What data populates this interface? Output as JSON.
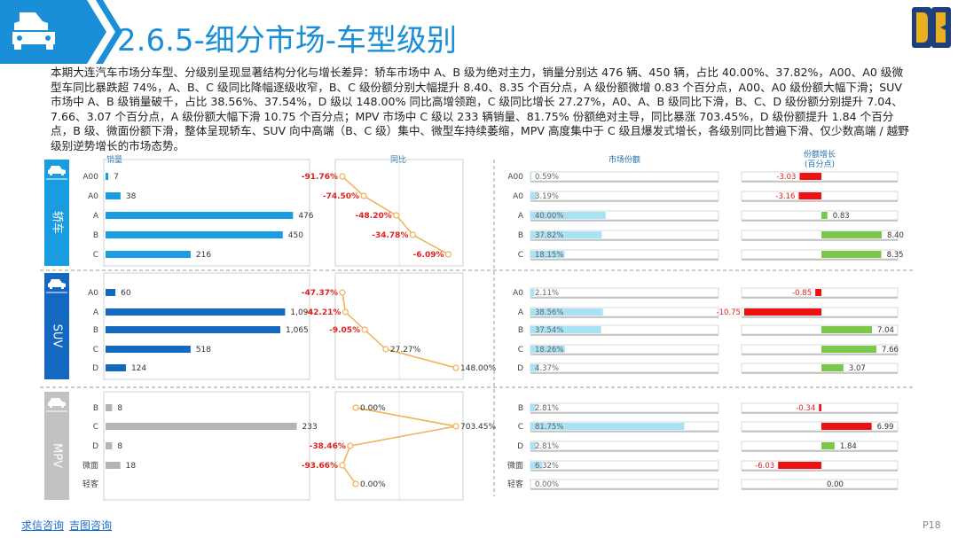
{
  "title": "2.6.5-细分市场-车型级别",
  "summary": "本期大连汽车市场分车型、分级别呈现显著结构分化与增长差异：轿车市场中 A、B 级为绝对主力，销量分别达 476 辆、450 辆，占比 40.00%、37.82%，A00、A0 级微型车同比暴跌超 74%，A、B、C 级同比降幅逐级收窄，B、C 级份额分别大幅提升 8.40、8.35 个百分点，A 级份额微增 0.83 个百分点，A00、A0 级份额大幅下滑；SUV 市场中 A、B 级销量破千，占比 38.56%、37.54%，D 级以 148.00% 同比高增领跑，C 级同比增长 27.27%，A0、A、B 级同比下滑，B、C、D 级份额分别提升 7.04、7.66、3.07 个百分点，A 级份额大幅下滑 10.75 个百分点；MPV 市场中 C 级以 233 辆销量、81.75% 份额绝对主导，同比暴涨 703.45%，D 级份额提升 1.84 个百分点，B 级、微面份额下滑，整体呈现轿车、SUV 向中高端（B、C 级）集中、微型车持续萎缩，MPV 高度集中于 C 级且爆发式增长，各级别同比普遍下滑、仅少数高端 / 越野级别逆势增长的市场态势。",
  "footer": {
    "link1": "求信咨询",
    "link2": "吉图咨询"
  },
  "page_number": "P18",
  "colors": {
    "accent": "#1a8fd8",
    "sedan_bar": "#1a9de0",
    "suv_bar": "#1468c0",
    "mpv_bar": "#b4b4b4",
    "yoy_line": "#f0b050",
    "yoy_label": "#e02020",
    "share_bar": "#a8e2f4",
    "gain": "#7cc84a",
    "loss": "#ee1111"
  },
  "chart_data": {
    "type": "bar",
    "column_headers": {
      "sales": "销量",
      "yoy": "同比",
      "share": "市场份额",
      "share_change": "份额增长",
      "share_change_unit": "(百分点)"
    },
    "panels": [
      {
        "name": "轿车",
        "icon": "sedan-icon",
        "categories": [
          "A00",
          "A0",
          "A",
          "B",
          "C"
        ],
        "sales": [
          7,
          38,
          476,
          450,
          216
        ],
        "sales_labels": [
          "7",
          "38",
          "476",
          "450",
          "216"
        ],
        "sales_max": 500,
        "yoy": [
          -91.76,
          -74.5,
          -48.2,
          -34.78,
          -6.09
        ],
        "yoy_labels": [
          "-91.76%",
          "-74.50%",
          "-48.20%",
          "-34.78%",
          "-6.09%"
        ],
        "share": [
          0.59,
          3.19,
          40.0,
          37.82,
          18.15
        ],
        "share_labels": [
          "0.59%",
          "3.19%",
          "40.00%",
          "37.82%",
          "18.15%"
        ],
        "share_change": [
          -3.03,
          -3.16,
          0.83,
          8.4,
          8.35
        ],
        "share_change_labels": [
          "-3.03",
          "-3.16",
          "0.83",
          "8.40",
          "8.35"
        ]
      },
      {
        "name": "SUV",
        "icon": "suv-icon",
        "categories": [
          "A0",
          "A",
          "B",
          "C",
          "D"
        ],
        "sales": [
          60,
          1094,
          1065,
          518,
          124
        ],
        "sales_labels": [
          "60",
          "1,094",
          "1,065",
          "518",
          "124"
        ],
        "sales_max": 1200,
        "yoy": [
          -47.37,
          -42.21,
          -9.05,
          27.27,
          148.0
        ],
        "yoy_labels": [
          "-47.37%",
          "-42.21%",
          "-9.05%",
          "27.27%",
          "148.00%"
        ],
        "share": [
          2.11,
          38.56,
          37.54,
          18.26,
          4.37
        ],
        "share_labels": [
          "2.11%",
          "38.56%",
          "37.54%",
          "18.26%",
          "4.37%"
        ],
        "share_change": [
          -0.85,
          -10.75,
          7.04,
          7.66,
          3.07
        ],
        "share_change_labels": [
          "-0.85",
          "-10.75",
          "7.04",
          "7.66",
          "3.07"
        ]
      },
      {
        "name": "MPV",
        "icon": "mpv-icon",
        "categories": [
          "B",
          "C",
          "D",
          "微面",
          "轻客"
        ],
        "sales": [
          8,
          233,
          8,
          18,
          0
        ],
        "sales_labels": [
          "8",
          "233",
          "8",
          "18",
          ""
        ],
        "sales_max": 240,
        "yoy": [
          0.0,
          703.45,
          -38.46,
          -93.66,
          0.0
        ],
        "yoy_labels": [
          "0.00%",
          "703.45%",
          "-38.46%",
          "-93.66%",
          "0.00%"
        ],
        "share": [
          2.81,
          81.75,
          2.81,
          6.32,
          0.0
        ],
        "share_labels": [
          "2.81%",
          "81.75%",
          "2.81%",
          "6.32%",
          "0.00%"
        ],
        "share_change": [
          -0.34,
          6.99,
          1.84,
          -6.03,
          0.0
        ],
        "share_change_labels": [
          "-0.34",
          "6.99",
          "1.84",
          "-6.03",
          "0.00"
        ]
      }
    ]
  }
}
